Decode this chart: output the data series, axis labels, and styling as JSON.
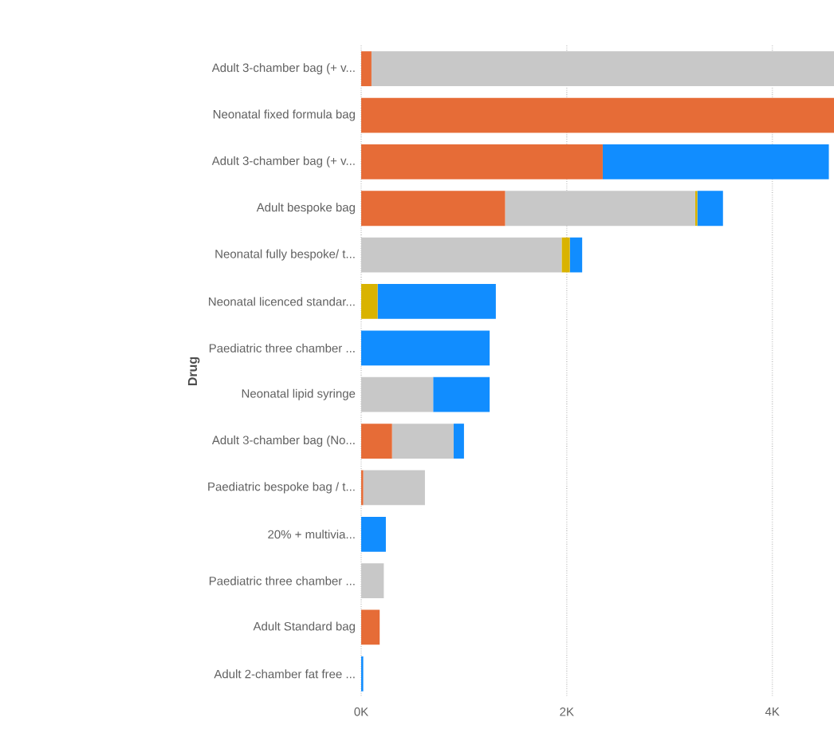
{
  "chart_data": {
    "type": "bar",
    "orientation": "horizontal",
    "stacked": true,
    "ylabel": "Drug",
    "categories": [
      "Adult 3-chamber bag (+ v...",
      "Neonatal fixed formula bag",
      "Adult 3-chamber bag (+ v...",
      "Adult bespoke bag",
      "Neonatal fully bespoke/ t...",
      "Neonatal licenced standar...",
      "Paediatric three chamber ...",
      "Neonatal lipid syringe",
      "Adult 3-chamber bag (No...",
      "Paediatric bespoke bag / t...",
      "20% + multivia...",
      "Paediatric three chamber ...",
      "Adult Standard bag",
      "Adult 2-chamber fat free ..."
    ],
    "series": [
      {
        "color": "#e66c37",
        "values": [
          100,
          4600,
          2350,
          1400,
          null,
          null,
          null,
          null,
          300,
          20,
          null,
          null,
          180,
          null
        ]
      },
      {
        "color": "#c8c8c8",
        "values": [
          4500,
          null,
          null,
          1850,
          1950,
          null,
          null,
          700,
          600,
          600,
          null,
          220,
          null,
          null
        ]
      },
      {
        "color": "#d9b300",
        "values": [
          null,
          null,
          null,
          20,
          80,
          160,
          null,
          null,
          null,
          null,
          null,
          null,
          null,
          null
        ]
      },
      {
        "color": "#118dff",
        "values": [
          null,
          null,
          2200,
          250,
          120,
          1150,
          1250,
          550,
          100,
          null,
          240,
          null,
          null,
          20
        ]
      }
    ],
    "xlim": [
      0,
      4600
    ],
    "xticks": [
      {
        "value": 0,
        "label": "0K"
      },
      {
        "value": 2000,
        "label": "2K"
      },
      {
        "value": 4000,
        "label": "4K"
      }
    ],
    "grid": "x"
  }
}
